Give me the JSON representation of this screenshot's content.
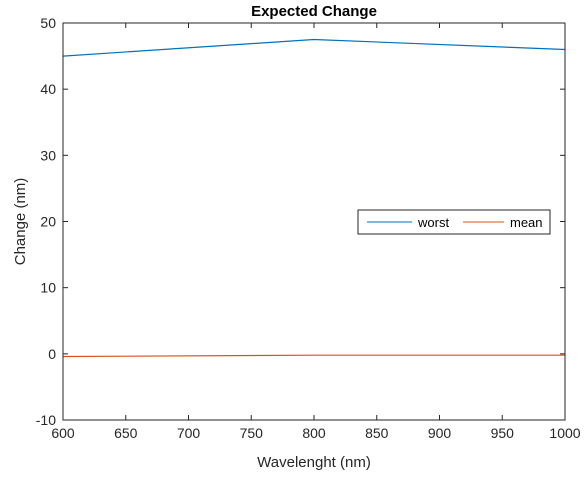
{
  "chart_data": {
    "type": "line",
    "title": "Expected Change",
    "xlabel": "Wavelenght (nm)",
    "ylabel": "Change (nm)",
    "xlim": [
      600,
      1000
    ],
    "ylim": [
      -10,
      50
    ],
    "xticks": [
      600,
      650,
      700,
      750,
      800,
      850,
      900,
      950,
      1000
    ],
    "yticks": [
      -10,
      0,
      10,
      20,
      30,
      40,
      50
    ],
    "grid": false,
    "legend": {
      "placement": "right",
      "orientation": "horizontal"
    },
    "x": [
      600,
      800,
      1000
    ],
    "series": [
      {
        "name": "worst",
        "color": "#0072BD",
        "values": [
          45.0,
          47.5,
          46.0
        ]
      },
      {
        "name": "mean",
        "color": "#D95319",
        "values": [
          -0.4,
          -0.2,
          -0.2
        ]
      }
    ]
  }
}
